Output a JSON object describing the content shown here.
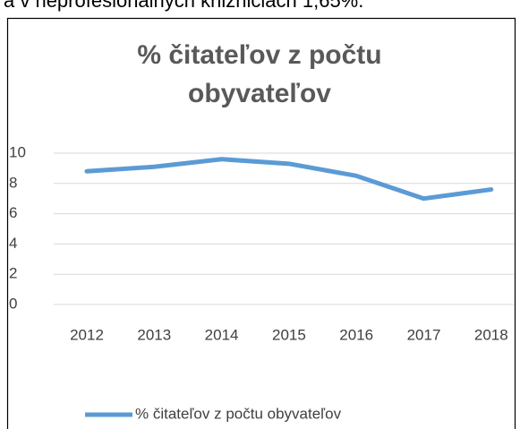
{
  "page_text": "a v neprofesionálnych knižniciach 1,65%.",
  "chart_data": {
    "type": "line",
    "title_lines": [
      "% čitateľov z počtu",
      "obyvateľov"
    ],
    "categories": [
      "2012",
      "2013",
      "2014",
      "2015",
      "2016",
      "2017",
      "2018"
    ],
    "series": [
      {
        "name": "% čitateľov z počtu obyvateľov",
        "color": "#5b9bd5",
        "values": [
          8.8,
          9.1,
          9.6,
          9.3,
          8.5,
          7.0,
          7.6
        ]
      }
    ],
    "ylim": [
      0,
      10
    ],
    "yticks": [
      0,
      2,
      4,
      6,
      8,
      10
    ],
    "grid": true,
    "legend": "bottom"
  }
}
